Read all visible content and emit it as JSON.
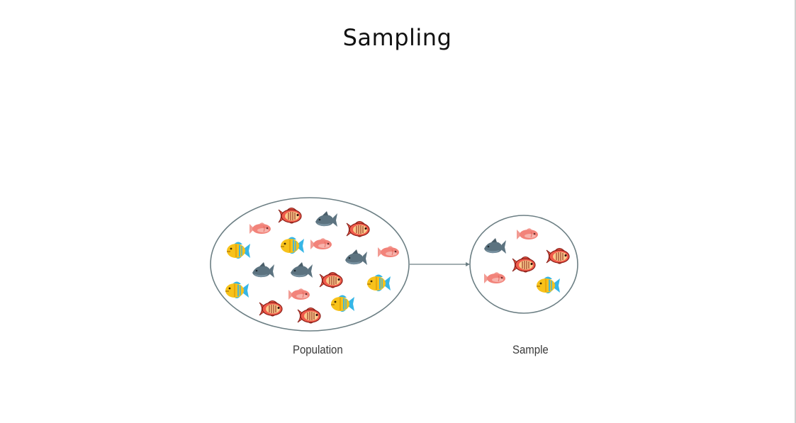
{
  "title": "Sampling",
  "labels": {
    "population": "Population",
    "sample": "Sample"
  },
  "colors": {
    "outline": "#6c7f84",
    "arrow": "#6c7f84",
    "pink_fish": "#f2837a",
    "gray_fish": "#5c7380",
    "yellow_fish": "#f7c21b",
    "striped_fish": "#f05a4b"
  },
  "icons": [
    "pink-fish-icon",
    "gray-fish-icon",
    "yellow-fish-icon",
    "striped-fish-icon"
  ]
}
